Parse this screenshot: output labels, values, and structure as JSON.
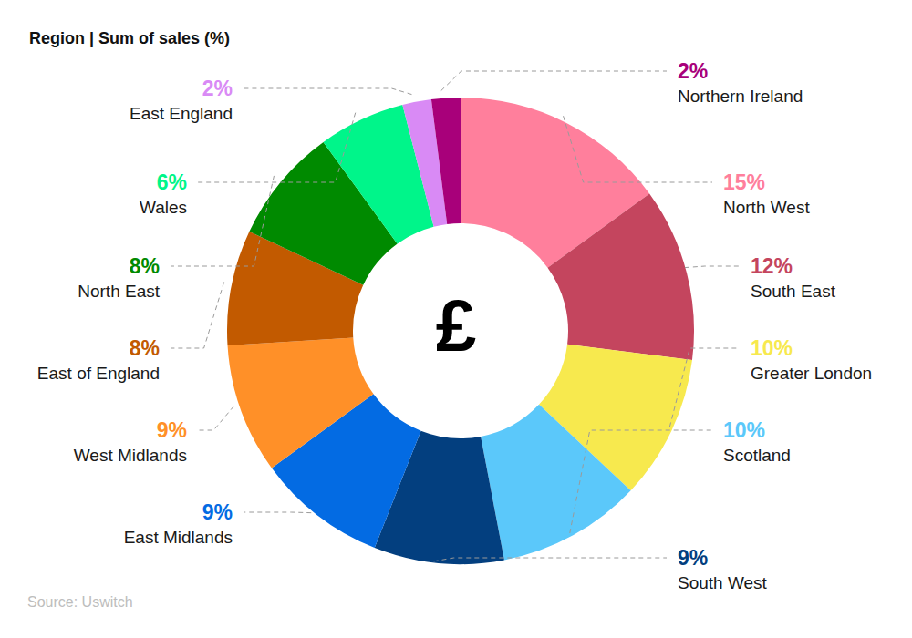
{
  "chart_data": {
    "type": "pie",
    "title": "Region | Sum of sales (%)",
    "center_text": "£",
    "source": "Source: Uswitch",
    "categories": [
      "North West",
      "South East",
      "Greater London",
      "Scotland",
      "South West",
      "East Midlands",
      "West Midlands",
      "East of England",
      "North East",
      "Wales",
      "East England",
      "Northern Ireland"
    ],
    "values": [
      15,
      12,
      10,
      10,
      9,
      9,
      9,
      8,
      8,
      6,
      2,
      2
    ],
    "value_labels": [
      "15%",
      "12%",
      "10%",
      "10%",
      "9%",
      "9%",
      "9%",
      "8%",
      "8%",
      "6%",
      "2%",
      "2%"
    ],
    "colors": [
      "#ff7f9c",
      "#c4455e",
      "#f7e94e",
      "#5bc8fa",
      "#033f7f",
      "#036be3",
      "#ff9028",
      "#c25a00",
      "#008a00",
      "#00f58a",
      "#d98af5",
      "#a8007a"
    ],
    "data_labels": true
  }
}
